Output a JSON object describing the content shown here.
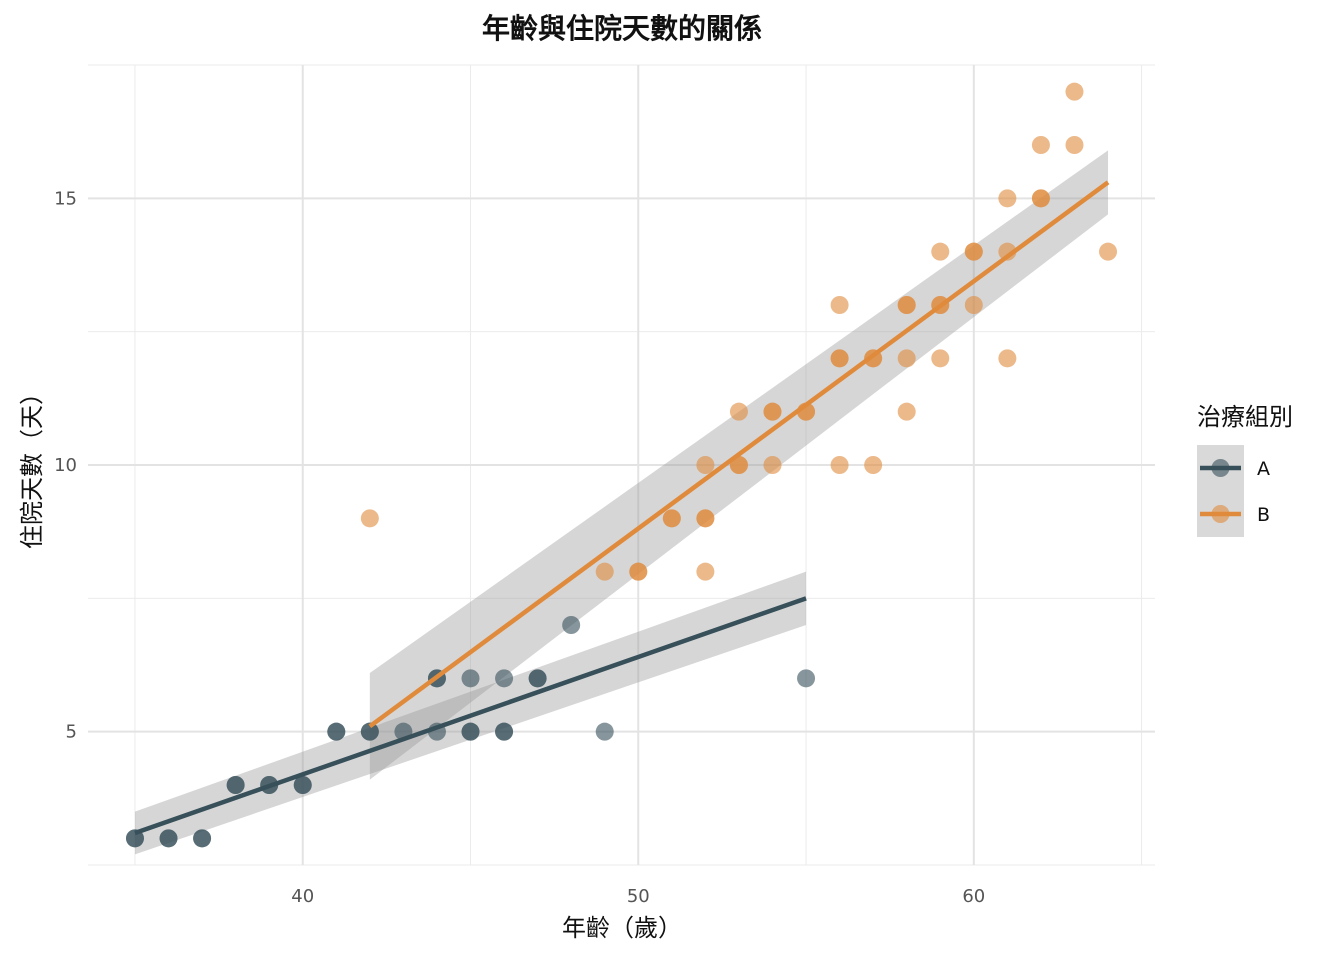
{
  "chart_data": {
    "type": "scatter",
    "title": "年齡與住院天數的關係",
    "xlabel": "年齡（歲）",
    "ylabel": "住院天數（天）",
    "xlim": [
      33.6,
      65.4
    ],
    "ylim": [
      2.5,
      17.5
    ],
    "x_ticks": [
      40,
      50,
      60
    ],
    "y_ticks": [
      5,
      10,
      15
    ],
    "x_minor_ticks": [
      35,
      45,
      55,
      65
    ],
    "y_minor_ticks": [
      2.5,
      7.5,
      12.5,
      17.5
    ],
    "grid": true,
    "legend": {
      "title": "治療組別",
      "position": "right"
    },
    "series": [
      {
        "name": "A",
        "color": "#37505a",
        "fit": {
          "x": [
            35,
            55
          ],
          "y": [
            3.1,
            7.5
          ],
          "ci_start": [
            2.7,
            3.5
          ],
          "ci_end": [
            7.0,
            8.0
          ]
        },
        "points": [
          [
            35,
            3
          ],
          [
            35,
            3
          ],
          [
            36,
            3
          ],
          [
            36,
            3
          ],
          [
            37,
            3
          ],
          [
            37,
            3
          ],
          [
            38,
            4
          ],
          [
            38,
            4
          ],
          [
            39,
            4
          ],
          [
            39,
            4
          ],
          [
            40,
            4
          ],
          [
            40,
            4
          ],
          [
            41,
            5
          ],
          [
            41,
            5
          ],
          [
            42,
            5
          ],
          [
            42,
            5
          ],
          [
            43,
            5
          ],
          [
            44,
            5
          ],
          [
            44,
            6
          ],
          [
            44,
            6
          ],
          [
            45,
            5
          ],
          [
            45,
            5
          ],
          [
            45,
            6
          ],
          [
            46,
            5
          ],
          [
            46,
            5
          ],
          [
            46,
            6
          ],
          [
            47,
            6
          ],
          [
            47,
            6
          ],
          [
            48,
            7
          ],
          [
            49,
            5
          ],
          [
            55,
            6
          ]
        ]
      },
      {
        "name": "B",
        "color": "#e08a3c",
        "fit": {
          "x": [
            42,
            64
          ],
          "y": [
            5.1,
            15.3
          ],
          "ci_start": [
            4.1,
            6.1
          ],
          "ci_end": [
            14.7,
            15.9
          ]
        },
        "points": [
          [
            42,
            9
          ],
          [
            49,
            8
          ],
          [
            50,
            8
          ],
          [
            50,
            8
          ],
          [
            51,
            9
          ],
          [
            51,
            9
          ],
          [
            52,
            8
          ],
          [
            52,
            9
          ],
          [
            52,
            9
          ],
          [
            52,
            10
          ],
          [
            53,
            10
          ],
          [
            53,
            10
          ],
          [
            53,
            11
          ],
          [
            54,
            10
          ],
          [
            54,
            11
          ],
          [
            54,
            11
          ],
          [
            55,
            11
          ],
          [
            55,
            11
          ],
          [
            56,
            10
          ],
          [
            56,
            12
          ],
          [
            56,
            12
          ],
          [
            56,
            13
          ],
          [
            57,
            10
          ],
          [
            57,
            12
          ],
          [
            57,
            12
          ],
          [
            58,
            11
          ],
          [
            58,
            12
          ],
          [
            58,
            13
          ],
          [
            58,
            13
          ],
          [
            59,
            12
          ],
          [
            59,
            13
          ],
          [
            59,
            13
          ],
          [
            59,
            14
          ],
          [
            60,
            13
          ],
          [
            60,
            14
          ],
          [
            60,
            14
          ],
          [
            61,
            12
          ],
          [
            61,
            14
          ],
          [
            61,
            15
          ],
          [
            62,
            15
          ],
          [
            62,
            15
          ],
          [
            62,
            16
          ],
          [
            63,
            16
          ],
          [
            63,
            17
          ],
          [
            64,
            14
          ]
        ]
      }
    ]
  }
}
